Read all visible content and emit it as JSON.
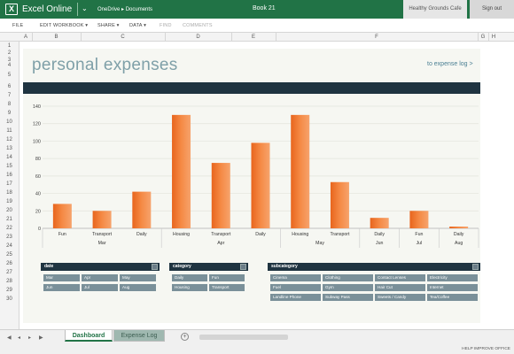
{
  "titlebar": {
    "app": "Excel Online",
    "breadcrumb": "OneDrive ▸ Documents",
    "book": "Book 21",
    "user": "Healthy Grounds Cafe",
    "signout": "Sign out",
    "logo": "X"
  },
  "ribbon": [
    "FILE",
    "EDIT WORKBOOK ▾",
    "SHARE ▾",
    "DATA ▾",
    "FIND",
    "COMMENTS"
  ],
  "columns": [
    "A",
    "B",
    "C",
    "D",
    "E",
    "F",
    "G",
    "H"
  ],
  "rows": [
    "1",
    "2",
    "3",
    "4",
    "5",
    "6",
    "7",
    "8",
    "9",
    "10",
    "11",
    "12",
    "13",
    "14",
    "15",
    "16",
    "17",
    "18",
    "19",
    "20",
    "21",
    "22",
    "23",
    "24",
    "25",
    "26",
    "27",
    "28",
    "29",
    "30"
  ],
  "dashboard": {
    "title": "personal expenses",
    "link": "to expense log >"
  },
  "chart_data": {
    "type": "bar",
    "categories": [
      "Fun",
      "Transport",
      "Daily",
      "Housing",
      "Transport",
      "Daily",
      "Housing",
      "Transport",
      "Daily",
      "Fun",
      "Daily"
    ],
    "groups": [
      {
        "label": "Mar",
        "span": 3
      },
      {
        "label": "Apr",
        "span": 3
      },
      {
        "label": "May",
        "span": 2
      },
      {
        "label": "Jun",
        "span": 1
      },
      {
        "label": "Jul",
        "span": 1
      },
      {
        "label": "Aug",
        "span": 1
      }
    ],
    "values": [
      28,
      20,
      42,
      130,
      75,
      98,
      130,
      53,
      12,
      20,
      2
    ],
    "yticks": [
      "0",
      "20",
      "40",
      "60",
      "80",
      "100",
      "120",
      "140"
    ],
    "ylim": [
      0,
      140
    ],
    "bar_color": "#f07b32",
    "grid": true
  },
  "slicers": {
    "date": {
      "title": "date",
      "items": [
        "Mar",
        "Apr",
        "May",
        "Jun",
        "Jul",
        "Aug"
      ]
    },
    "category": {
      "title": "category",
      "items": [
        "Daily",
        "Fun",
        "Housing",
        "Transport"
      ]
    },
    "subcategory": {
      "title": "subcategory",
      "items": [
        "Cinema",
        "Clothing",
        "Contact Lenses",
        "Electricity",
        "Fuel",
        "Gym",
        "Hair Cut",
        "Internet",
        "Landline Phone",
        "Subway Pass",
        "Sweets / Candy",
        "Tea/Coffee"
      ]
    }
  },
  "tabs": {
    "nav": [
      "◀",
      "◂",
      "▸",
      "▶"
    ],
    "sheets": [
      "Dashboard",
      "Expense Log"
    ],
    "add": "+"
  },
  "status": "HELP IMPROVE OFFICE"
}
